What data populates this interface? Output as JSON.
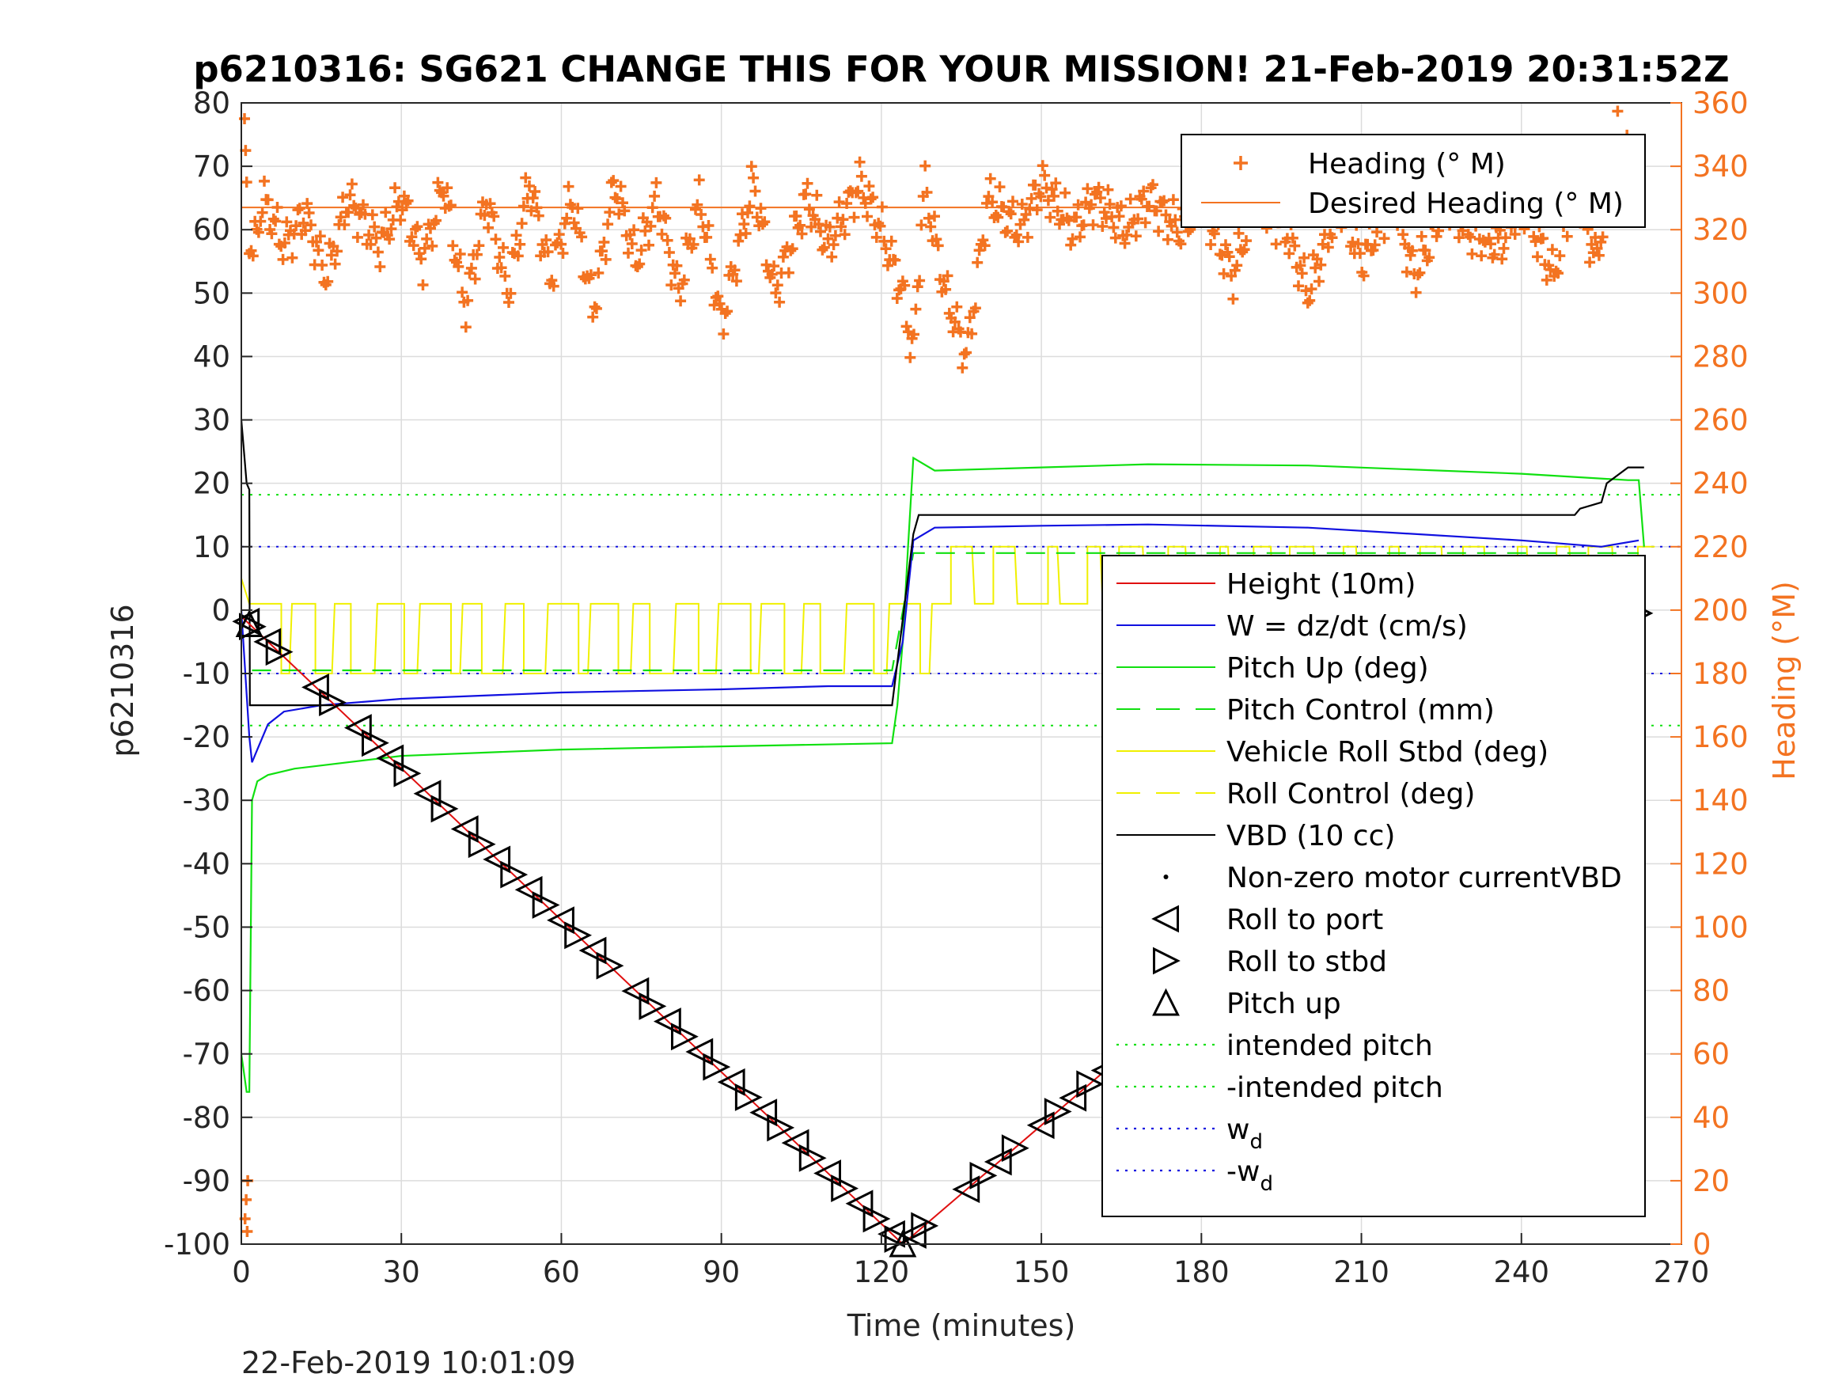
{
  "chart_data": {
    "type": "line",
    "title": "p6210316: SG621 CHANGE THIS FOR YOUR MISSION! 21-Feb-2019 20:31:52Z",
    "footer": "22-Feb-2019 10:01:09",
    "xlabel": "Time (minutes)",
    "ylabel": "p6210316",
    "y2label": "Heading (°M)",
    "xlim": [
      0,
      270
    ],
    "ylim": [
      -100,
      80
    ],
    "y2lim": [
      0,
      360
    ],
    "x_ticks": [
      "0",
      "30",
      "60",
      "90",
      "120",
      "150",
      "180",
      "210",
      "240",
      "270"
    ],
    "y_ticks": [
      "-100",
      "-90",
      "-80",
      "-70",
      "-60",
      "-50",
      "-40",
      "-30",
      "-20",
      "-10",
      "0",
      "10",
      "20",
      "30",
      "40",
      "50",
      "60",
      "70",
      "80"
    ],
    "y2_ticks": [
      "0",
      "20",
      "40",
      "60",
      "80",
      "100",
      "120",
      "140",
      "160",
      "180",
      "200",
      "220",
      "240",
      "260",
      "280",
      "300",
      "320",
      "340",
      "360"
    ],
    "grid": true,
    "legend_top": {
      "placement": "top-right",
      "entries": [
        {
          "label": "Heading (° M)",
          "color": "#F37321",
          "style": "plus"
        },
        {
          "label": "Desired Heading (° M)",
          "color": "#F37321",
          "style": "line"
        }
      ]
    },
    "legend_main": {
      "placement": "right",
      "entries": [
        {
          "label": "Height (10m)",
          "color": "#E01010",
          "style": "line"
        },
        {
          "label": "W = dz/dt (cm/s)",
          "color": "#1010E0",
          "style": "line"
        },
        {
          "label": "Pitch Up (deg)",
          "color": "#10E010",
          "style": "line"
        },
        {
          "label": "Pitch Control (mm)",
          "color": "#10E010",
          "style": "dash"
        },
        {
          "label": "Vehicle Roll Stbd (deg)",
          "color": "#F0F000",
          "style": "line"
        },
        {
          "label": "Roll Control (deg)",
          "color": "#F0F000",
          "style": "dash"
        },
        {
          "label": "VBD (10 cc)",
          "color": "#000000",
          "style": "line"
        },
        {
          "label": "Non-zero motor currentVBD",
          "color": "#000000",
          "style": "dot"
        },
        {
          "label": "Roll to port",
          "color": "#000000",
          "style": "tri-left"
        },
        {
          "label": "Roll to stbd",
          "color": "#000000",
          "style": "tri-right"
        },
        {
          "label": "Pitch up",
          "color": "#000000",
          "style": "tri-up"
        },
        {
          "label": "intended pitch",
          "color": "#10E010",
          "style": "dotted"
        },
        {
          "label": "-intended pitch",
          "color": "#10E010",
          "style": "dotted"
        },
        {
          "label": "w",
          "sub": "d",
          "color": "#1010E0",
          "style": "dotted"
        },
        {
          "label": "-w",
          "sub": "d",
          "color": "#1010E0",
          "style": "dotted"
        }
      ]
    },
    "reference_lines": [
      {
        "name": "intended pitch",
        "y": 18.2,
        "color": "#10E010"
      },
      {
        "name": "-intended pitch",
        "y": -18.2,
        "color": "#10E010"
      },
      {
        "name": "w_d",
        "y": 10,
        "color": "#1010E0"
      },
      {
        "name": "-w_d",
        "y": -10,
        "color": "#1010E0"
      }
    ],
    "series": [
      {
        "name": "Height (10m)",
        "color": "#E01010",
        "x": [
          0,
          124,
          262
        ],
        "y": [
          -1,
          -100,
          -0.5
        ]
      },
      {
        "name": "W = dz/dt (cm/s)",
        "color": "#1010E0",
        "x": [
          0,
          1.5,
          2,
          3,
          5,
          8,
          15,
          30,
          60,
          90,
          110,
          122,
          124,
          126,
          130,
          150,
          170,
          200,
          240,
          255,
          262
        ],
        "y": [
          0,
          -20,
          -24,
          -22,
          -18,
          -16,
          -15,
          -14,
          -13,
          -12.5,
          -12,
          -12,
          -5,
          11,
          13,
          13.3,
          13.5,
          13,
          11,
          10,
          11
        ]
      },
      {
        "name": "Pitch Up (deg)",
        "color": "#10E010",
        "x": [
          0,
          1,
          1.5,
          2,
          3,
          5,
          10,
          30,
          60,
          90,
          122,
          123,
          124,
          125,
          126,
          130,
          150,
          170,
          200,
          240,
          260,
          262,
          263
        ],
        "y": [
          -70,
          -76,
          -76,
          -30,
          -27,
          -26,
          -25,
          -23,
          -22,
          -21.5,
          -21,
          -15,
          -5,
          10,
          24,
          22,
          22.5,
          23,
          22.8,
          21.5,
          20.5,
          20.5,
          10
        ]
      },
      {
        "name": "Pitch Control (mm)",
        "color": "#10E010",
        "x": [
          2,
          122,
          126,
          262
        ],
        "y": [
          -9.5,
          -9.5,
          9,
          9
        ]
      },
      {
        "name": "VBD (10 cc)",
        "color": "#000000",
        "x": [
          0,
          1,
          1.5,
          1.6,
          3,
          122,
          126,
          127,
          250,
          251,
          255,
          256,
          260,
          263
        ],
        "y": [
          30,
          20,
          19,
          -15,
          -15,
          -15,
          12,
          15,
          15,
          16,
          17,
          20,
          22.5,
          22.5
        ]
      },
      {
        "name": "Vehicle Roll Stbd (deg)",
        "color": "#F0F000",
        "description": "oscillates between about 0 and -10 on dive, 0 to 10 on climb",
        "range_dive": [
          -10,
          1
        ],
        "range_climb": [
          1,
          10
        ]
      },
      {
        "name": "Heading (° M)",
        "color": "#F37321",
        "axis": "right",
        "x": [
          0,
          2,
          4,
          8,
          12,
          16,
          20,
          26,
          30,
          34,
          38,
          42,
          46,
          50,
          54,
          58,
          62,
          66,
          70,
          74,
          78,
          82,
          86,
          90,
          96,
          100,
          106,
          110,
          116,
          120,
          124,
          126,
          128,
          132,
          136,
          140,
          146,
          150,
          156,
          160,
          166,
          170,
          176,
          180,
          186,
          190,
          196,
          200,
          206,
          210,
          216,
          220,
          226,
          230,
          236,
          240,
          246,
          250,
          254,
          258,
          262
        ],
        "y": [
          350,
          310,
          330,
          315,
          325,
          305,
          330,
          315,
          330,
          310,
          335,
          295,
          330,
          300,
          335,
          305,
          330,
          295,
          335,
          310,
          330,
          300,
          330,
          290,
          335,
          300,
          330,
          315,
          335,
          320,
          300,
          280,
          335,
          300,
          280,
          330,
          320,
          335,
          320,
          330,
          320,
          330,
          320,
          330,
          305,
          330,
          320,
          300,
          330,
          310,
          330,
          305,
          330,
          320,
          315,
          330,
          305,
          335,
          310,
          350,
          335
        ]
      },
      {
        "name": "Desired Heading (° M)",
        "color": "#F37321",
        "axis": "right",
        "x": [
          0,
          262
        ],
        "y": [
          327,
          327
        ]
      }
    ],
    "marker_series": [
      {
        "name": "Roll to port",
        "symbol": "tri-left",
        "x": [
          1,
          5,
          14,
          22,
          28,
          35,
          42,
          48,
          54,
          60,
          66,
          74,
          80,
          86,
          92,
          98,
          104,
          110,
          116,
          122,
          126,
          136,
          142,
          150,
          156,
          162,
          168,
          176,
          182,
          190,
          196,
          202,
          208,
          214,
          222,
          230,
          238,
          248,
          254,
          260
        ]
      },
      {
        "name": "Roll to stbd",
        "symbol": "tri-right",
        "x": [
          2,
          7,
          17,
          25,
          31,
          38,
          45,
          51,
          57,
          63,
          69,
          77,
          83,
          89,
          95,
          101,
          107,
          113,
          119,
          123,
          128,
          139,
          145,
          153,
          159,
          165,
          171,
          179,
          185,
          193,
          199,
          205,
          211,
          217,
          225,
          233,
          241,
          250,
          256,
          262
        ]
      },
      {
        "name": "Pitch up",
        "symbol": "tri-up",
        "x": [
          1.5,
          124
        ]
      }
    ]
  }
}
